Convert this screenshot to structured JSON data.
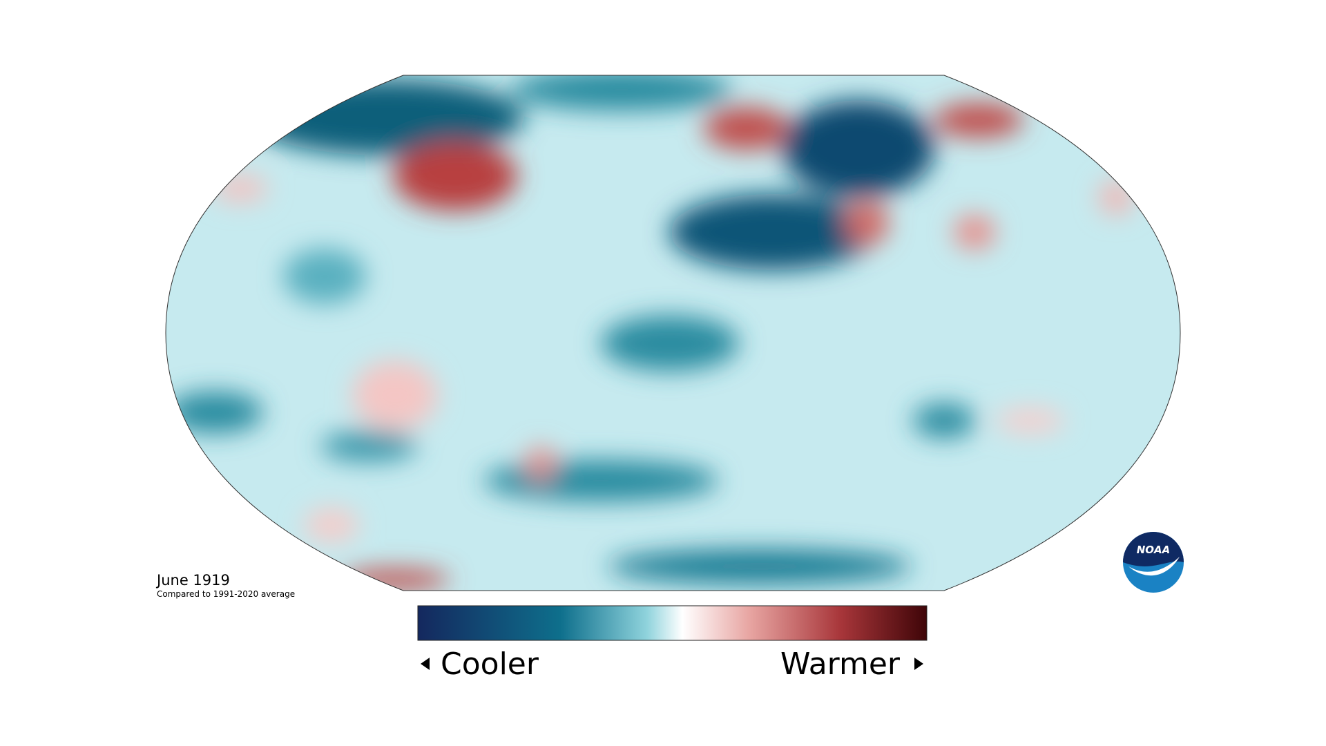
{
  "map": {
    "date": "June 1919",
    "subtitle": "Compared to 1991-2020 average"
  },
  "legend": {
    "low": "Cooler",
    "high": "Warmer"
  },
  "logo": "NOAA"
}
